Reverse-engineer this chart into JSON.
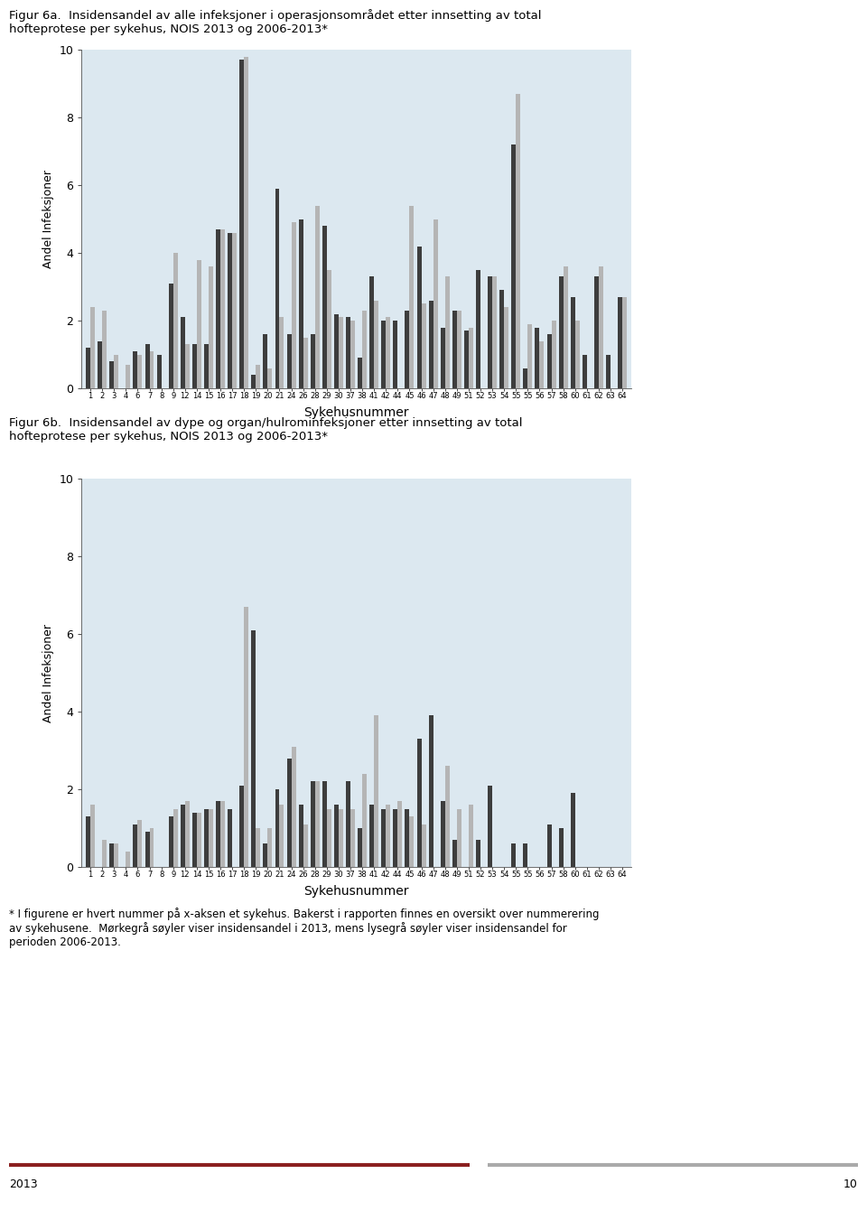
{
  "title_6a": "Figur 6a.  Insidensandel av alle infeksjoner i operasjonsområdet etter innsetting av total\nhofteprotese per sykehus, NOIS 2013 og 2006-2013*",
  "title_6b": "Figur 6b.  Insidensandel av dype og organ/hulrominfeksjoner etter innsetting av total\nhofteprotese per sykehus, NOIS 2013 og 2006-2013*",
  "xlabel": "Sykehusnummer",
  "ylabel": "Andel Infeksjoner",
  "footnote": "* I figurene er hvert nummer på x-aksen et sykehus. Bakerst i rapporten finnes en oversikt over nummerering\nav sykehusene.  Mørkegrå søyler viser insidensandel i 2013, mens lysegrå søyler viser insidensandel for\nperioden 2006-2013.",
  "x_labels": [
    "1",
    "2",
    "3",
    "4",
    "6",
    "7",
    "8",
    "9",
    "12",
    "14",
    "15",
    "16",
    "17",
    "18",
    "19",
    "20",
    "21",
    "24",
    "26",
    "28",
    "29",
    "30",
    "37",
    "38",
    "41",
    "42",
    "44",
    "45",
    "46",
    "47",
    "48",
    "49",
    "51",
    "52",
    "53",
    "54",
    "55",
    "55",
    "56",
    "57",
    "58",
    "60",
    "61",
    "62",
    "63",
    "64"
  ],
  "dark_color": "#3d3d3d",
  "light_color": "#b5b5b5",
  "bg_color": "#dce8f0",
  "fig_bg": "#ffffff",
  "yticks": [
    0,
    2,
    4,
    6,
    8,
    10
  ],
  "chart6a_dark": [
    1.2,
    1.4,
    0.8,
    0.0,
    1.1,
    1.3,
    1.0,
    3.1,
    2.1,
    1.3,
    1.3,
    4.7,
    4.6,
    9.7,
    0.4,
    1.6,
    5.9,
    1.6,
    5.0,
    1.6,
    4.8,
    2.2,
    2.1,
    0.9,
    3.3,
    2.0,
    2.0,
    2.3,
    4.2,
    2.6,
    1.8,
    2.3,
    1.7,
    3.5,
    3.3,
    2.9,
    7.2,
    0.6,
    1.8,
    1.6,
    3.3,
    2.7,
    1.0,
    3.3,
    1.0,
    2.7
  ],
  "chart6a_light": [
    2.4,
    2.3,
    1.0,
    0.7,
    1.0,
    1.1,
    0.0,
    4.0,
    1.3,
    3.8,
    3.6,
    4.7,
    4.6,
    9.8,
    0.7,
    0.6,
    2.1,
    4.9,
    1.5,
    5.4,
    3.5,
    2.1,
    2.0,
    2.3,
    2.6,
    2.1,
    0.0,
    5.4,
    2.5,
    5.0,
    3.3,
    2.3,
    1.8,
    0.0,
    3.3,
    2.4,
    8.7,
    1.9,
    1.4,
    2.0,
    3.6,
    2.0,
    0.0,
    3.6,
    0.0,
    2.7
  ],
  "chart6b_dark": [
    1.3,
    0.0,
    0.6,
    0.0,
    1.1,
    0.9,
    0.0,
    1.3,
    1.6,
    1.4,
    1.5,
    1.7,
    1.5,
    2.1,
    6.1,
    0.6,
    2.0,
    2.8,
    1.6,
    2.2,
    2.2,
    1.6,
    2.2,
    1.0,
    1.6,
    1.5,
    1.5,
    1.5,
    3.3,
    3.9,
    1.7,
    0.7,
    0.0,
    0.7,
    2.1,
    0.0,
    0.6,
    0.6,
    0.0,
    1.1,
    1.0,
    1.9,
    0.0,
    0.0,
    0.0,
    0.0
  ],
  "chart6b_light": [
    1.6,
    0.7,
    0.6,
    0.4,
    1.2,
    1.0,
    0.0,
    1.5,
    1.7,
    1.4,
    1.5,
    1.7,
    0.0,
    6.7,
    1.0,
    1.0,
    1.6,
    3.1,
    1.1,
    2.2,
    1.5,
    1.5,
    1.5,
    2.4,
    3.9,
    1.6,
    1.7,
    1.3,
    1.1,
    0.0,
    2.6,
    1.5,
    1.6,
    0.0,
    0.0,
    0.0,
    0.0,
    0.0,
    0.0,
    0.0,
    0.0,
    0.0,
    0.0,
    0.0,
    0.0,
    0.0
  ],
  "page_left": "2013",
  "page_right": "10",
  "bar_width": 0.38,
  "footer_line1_color": "#8B2020",
  "footer_line2_color": "#aaaaaa"
}
